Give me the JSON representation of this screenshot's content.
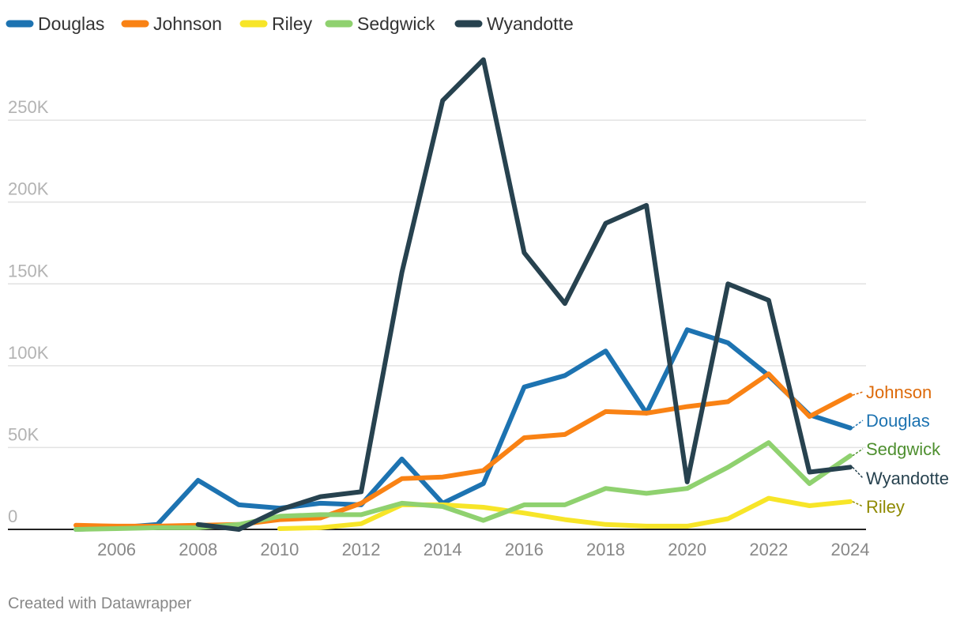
{
  "chart_data": {
    "type": "line",
    "title": "",
    "xlabel": "",
    "ylabel": "",
    "x": [
      2005,
      2006,
      2007,
      2008,
      2009,
      2010,
      2011,
      2012,
      2013,
      2014,
      2015,
      2016,
      2017,
      2018,
      2019,
      2020,
      2021,
      2022,
      2023,
      2024
    ],
    "xlim": [
      2005,
      2024
    ],
    "ylim": [
      0,
      280000
    ],
    "x_ticks": [
      "2006",
      "2008",
      "2010",
      "2012",
      "2014",
      "2016",
      "2018",
      "2020",
      "2022",
      "2024"
    ],
    "y_ticks": [
      {
        "value": 0,
        "label": "0"
      },
      {
        "value": 50000,
        "label": "50K"
      },
      {
        "value": 100000,
        "label": "100K"
      },
      {
        "value": 150000,
        "label": "150K"
      },
      {
        "value": 200000,
        "label": "200K"
      },
      {
        "value": 250000,
        "label": "250K"
      }
    ],
    "grid": true,
    "legend_position": "top-left",
    "series": [
      {
        "name": "Douglas",
        "color": "#1d73b1",
        "values": [
          0,
          1000,
          3000,
          30000,
          15000,
          13000,
          16000,
          15000,
          43000,
          16000,
          28000,
          87000,
          94000,
          109000,
          71000,
          122000,
          114000,
          94000,
          70000,
          62000
        ]
      },
      {
        "name": "Johnson",
        "color": "#f98214",
        "values": [
          2500,
          2000,
          2000,
          2500,
          3000,
          6000,
          7000,
          16000,
          31000,
          32000,
          36000,
          56000,
          58000,
          72000,
          71000,
          75000,
          78000,
          95000,
          69000,
          82000
        ]
      },
      {
        "name": "Riley",
        "color": "#f7e528",
        "values": [
          null,
          null,
          null,
          null,
          null,
          500,
          1000,
          3500,
          15000,
          15000,
          13500,
          10000,
          6000,
          3000,
          2000,
          2000,
          6500,
          19000,
          14500,
          17000
        ]
      },
      {
        "name": "Sedgwick",
        "color": "#8fd16f",
        "values": [
          0,
          500,
          1000,
          1000,
          3000,
          8000,
          9000,
          9000,
          16000,
          14000,
          5500,
          15000,
          15000,
          25000,
          22000,
          25000,
          38000,
          53000,
          28000,
          45000
        ]
      },
      {
        "name": "Wyandotte",
        "color": "#27424f",
        "values": [
          null,
          null,
          null,
          3000,
          0,
          12000,
          20000,
          23000,
          157000,
          262000,
          287000,
          169000,
          138000,
          187000,
          198000,
          29000,
          150000,
          140000,
          35000,
          38000
        ]
      }
    ],
    "end_labels": [
      {
        "series": "Johnson",
        "text": "Johnson",
        "color": "#dd6a0a"
      },
      {
        "series": "Douglas",
        "text": "Douglas",
        "color": "#1d73b1"
      },
      {
        "series": "Sedgwick",
        "text": "Sedgwick",
        "color": "#4e8f2f"
      },
      {
        "series": "Wyandotte",
        "text": "Wyandotte",
        "color": "#27424f"
      },
      {
        "series": "Riley",
        "text": "Riley",
        "color": "#8f8a00"
      }
    ]
  },
  "footer": "Created with Datawrapper"
}
